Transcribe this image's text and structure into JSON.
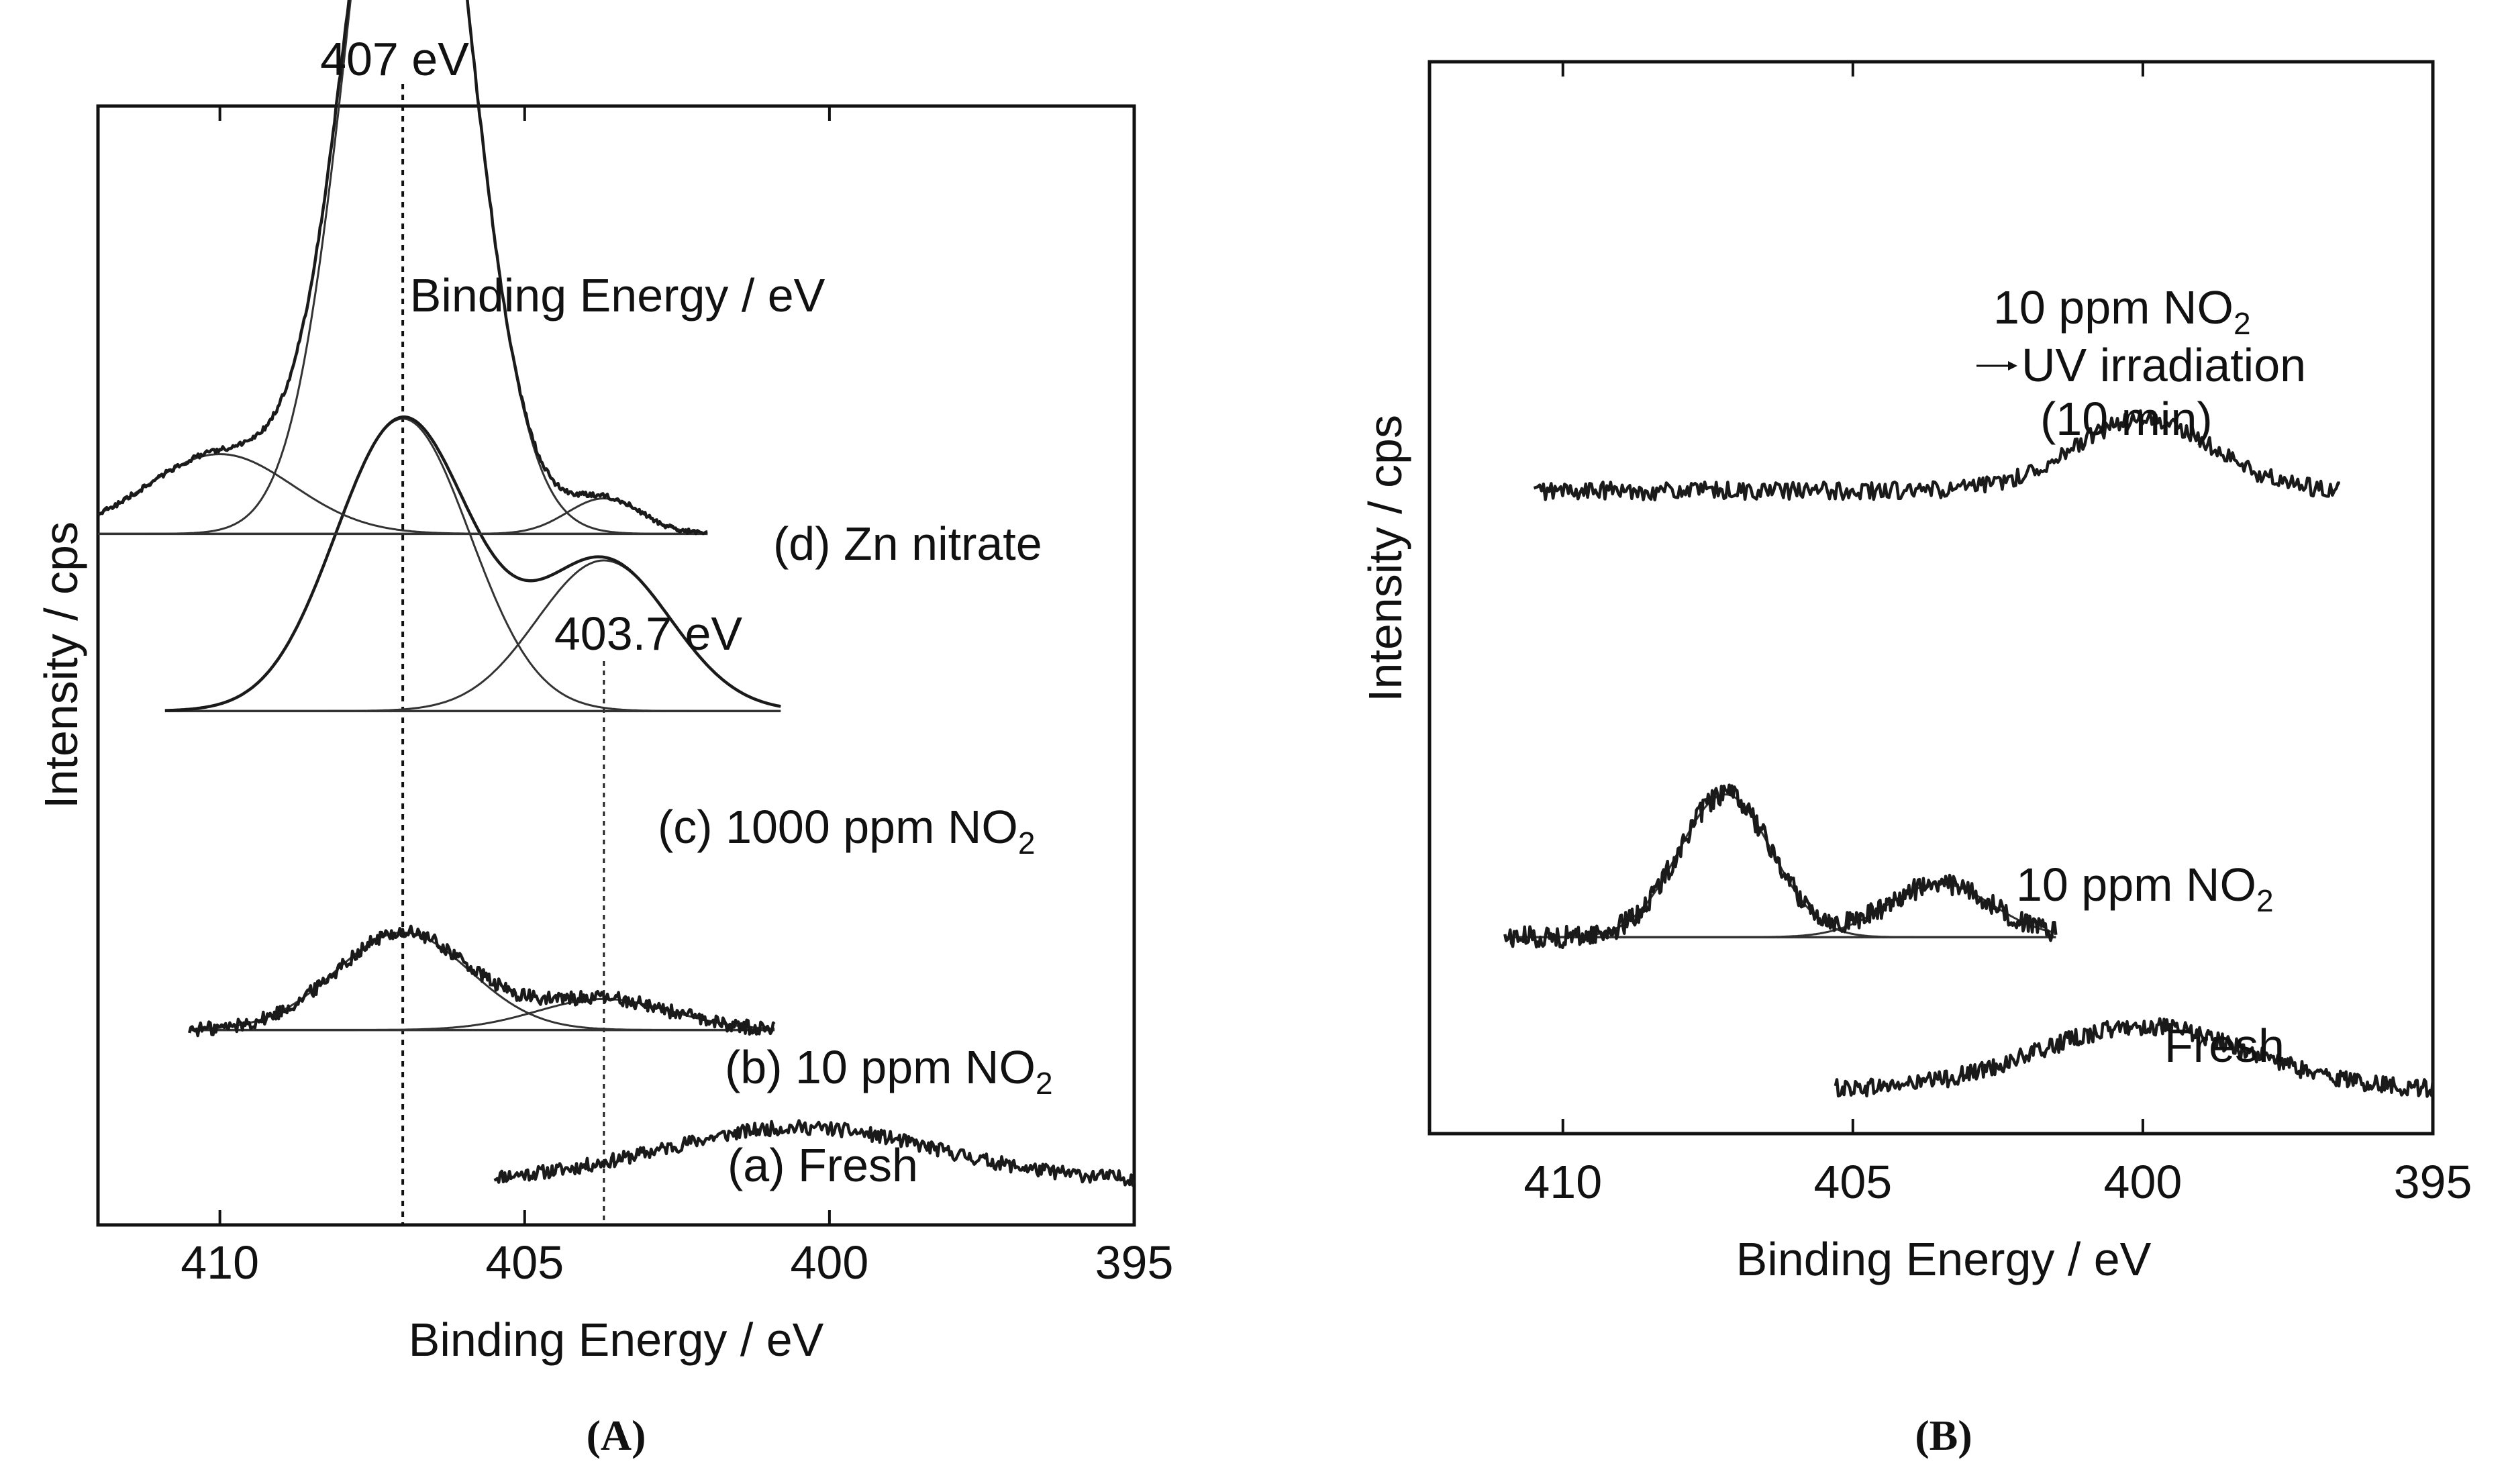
{
  "chart_data": [
    {
      "panel": "A",
      "type": "line",
      "panel_label": "(A)",
      "xlabel": "Binding Energy / eV",
      "ylabel": "Intensity / cps",
      "xlim": [
        412,
        395
      ],
      "xticks": [
        410,
        405,
        400,
        395
      ],
      "title_annotation": "Binding Energy / eV",
      "reference_lines": [
        {
          "x": 407,
          "label": "407 eV"
        },
        {
          "x": 403.7,
          "label": "403.7 eV"
        }
      ],
      "series": [
        {
          "name": "(a) Fresh",
          "x_range": [
            405.5,
            395
          ],
          "baseline": 0.05,
          "peaks": [
            {
              "center": 400.5,
              "height": 0.06,
              "width": 2.2
            }
          ],
          "noise": 0.008
        },
        {
          "name": "(b) 10 ppm NO",
          "name_sub": "2",
          "x_range": [
            410.5,
            400.9
          ],
          "baseline": 0.22,
          "peaks": [
            {
              "center": 407.0,
              "height": 0.11,
              "width": 1.1
            },
            {
              "center": 403.7,
              "height": 0.035,
              "width": 1.1
            }
          ],
          "noise": 0.008
        },
        {
          "name": "(c) 1000 ppm NO",
          "name_sub": "2",
          "x_range": [
            410.9,
            400.8
          ],
          "baseline": 0.58,
          "peaks": [
            {
              "center": 407.0,
              "height": 0.33,
              "width": 1.1
            },
            {
              "center": 403.7,
              "height": 0.17,
              "width": 1.1
            }
          ],
          "noise": 0.0
        },
        {
          "name": "(d) Zn nitrate",
          "x_range": [
            412,
            402
          ],
          "baseline": 0.78,
          "peaks": [
            {
              "center": 410.0,
              "height": 0.09,
              "width": 1.2
            },
            {
              "center": 406.9,
              "height": 1.0,
              "width": 0.95
            },
            {
              "center": 403.7,
              "height": 0.04,
              "width": 0.6
            }
          ],
          "noise": 0.003
        }
      ]
    },
    {
      "panel": "B",
      "type": "line",
      "panel_label": "(B)",
      "xlabel": "Binding Energy / eV",
      "ylabel": "Intensity / cps",
      "xlim": [
        412.3,
        395
      ],
      "xticks": [
        410,
        405,
        400,
        395
      ],
      "series": [
        {
          "name": "Fresh",
          "x_range": [
            405.3,
            395
          ],
          "baseline": 0.05,
          "peaks": [
            {
              "center": 400.0,
              "height": 0.07,
              "width": 1.8
            }
          ],
          "noise": 0.01
        },
        {
          "name": "10 ppm NO",
          "name_sub": "2",
          "x_range": [
            411.0,
            401.5
          ],
          "baseline": 0.22,
          "peaks": [
            {
              "center": 407.2,
              "height": 0.16,
              "width": 0.8
            },
            {
              "center": 403.5,
              "height": 0.06,
              "width": 0.9
            }
          ],
          "noise": 0.012
        },
        {
          "name": "10 ppm NO",
          "name_sub": "2",
          "name_line2": "UV irradiation",
          "name_line3": "(10 min)",
          "x_range": [
            410.5,
            396.6
          ],
          "baseline": 0.72,
          "peaks": [
            {
              "center": 400.0,
              "height": 0.08,
              "width": 1.2
            }
          ],
          "noise": 0.01
        }
      ]
    }
  ]
}
